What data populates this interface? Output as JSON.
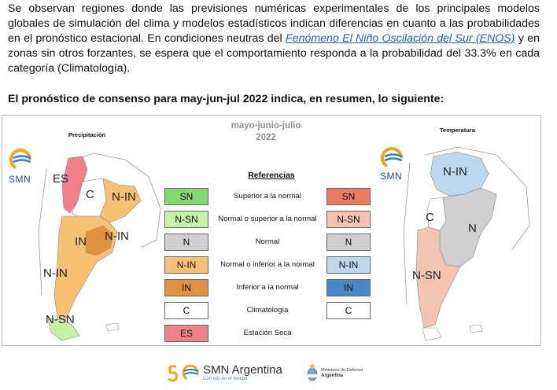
{
  "paragraph": {
    "before_link": "Se observan regiones donde las previsiones numéricas experimentales de los principales modelos globales de simulación del clima y modelos estadísticos indican diferencias en cuanto a las probabilidades en el pronóstico estacional. En condiciones neutras del ",
    "link_text": "Fenómeno El Niño Oscilación del Sur (ENOS)",
    "after_link": " y en zonas sin otros forzantes, se espera que el comportamiento responda a la probabilidad del 33.3% en cada categoría (Climatología)."
  },
  "heading": "El pronóstico de consenso para  may-jun-jul 2022 indica, en resumen, lo siguiente:",
  "panel": {
    "title_line1": "mayo-junio-julio",
    "title_line2": "2022",
    "left_map_label": "Precipitación",
    "right_map_label": "Temperatura",
    "logo_text": "SMN"
  },
  "precip_regions": {
    "es": "ES",
    "c": "C",
    "nin_ne": "N-IN",
    "in_center": "IN",
    "nin_center": "N-IN",
    "nin_south": "N-IN",
    "nsn_south": "N-SN"
  },
  "temp_regions": {
    "nin_north": "N-IN",
    "c": "C",
    "n": "N",
    "nsn": "N-SN"
  },
  "references": {
    "title": "Referencias",
    "rows": [
      {
        "left": "SN",
        "desc": "Superior a la normal",
        "right": "SN"
      },
      {
        "left": "N-SN",
        "desc": "Normal o superior a la normal",
        "right": "N-SN"
      },
      {
        "left": "N",
        "desc": "Normal",
        "right": "N"
      },
      {
        "left": "N-IN",
        "desc": "Normal o inferior a la normal",
        "right": "N-IN"
      },
      {
        "left": "IN",
        "desc": "Inferior a la normal",
        "right": "IN"
      },
      {
        "left": "C",
        "desc": "Climatología",
        "right": "C"
      },
      {
        "left": "ES",
        "desc": "Estación Seca",
        "right": ""
      }
    ]
  },
  "colors": {
    "precip_sn": "#86d672",
    "precip_nsn": "#c7f1a6",
    "normal": "#d0d0d0",
    "precip_nin": "#f6c173",
    "precip_in": "#e09240",
    "clim": "#ffffff",
    "dry": "#f1808a",
    "temp_sn": "#eb7b63",
    "temp_nsn": "#f4c4b3",
    "temp_nin": "#bcd8ee",
    "temp_in": "#4a89c9"
  },
  "footer": {
    "brand": "SMN Argentina",
    "tagline": "Con vos en el tiempo",
    "ministry_line1": "Ministerio de Defensa",
    "ministry_line2": "Argentina"
  }
}
